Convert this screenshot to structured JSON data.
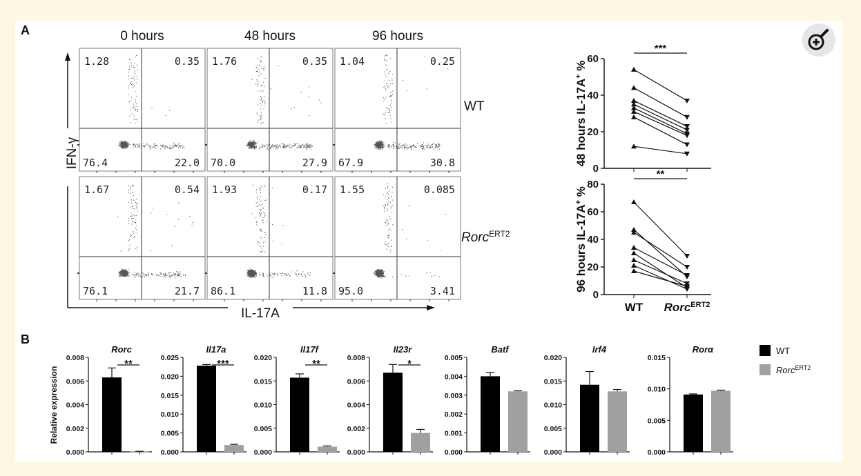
{
  "figure": {
    "panel_a_label": "A",
    "panel_b_label": "B",
    "time_headers": [
      "0 hours",
      "48 hours",
      "96 hours"
    ],
    "flow": {
      "x_axis_label": "IL-17A",
      "y_axis_label": "IFN-γ",
      "row_labels": [
        {
          "main": "WT",
          "sup": ""
        },
        {
          "main": "Rorc",
          "sup": "ERT2"
        }
      ],
      "plots": [
        {
          "row": 0,
          "col": 0,
          "q": [
            "1.28",
            "0.35",
            "76.4",
            "22.0"
          ]
        },
        {
          "row": 0,
          "col": 1,
          "q": [
            "1.76",
            "0.35",
            "70.0",
            "27.9"
          ]
        },
        {
          "row": 0,
          "col": 2,
          "q": [
            "1.04",
            "0.25",
            "67.9",
            "30.8"
          ]
        },
        {
          "row": 1,
          "col": 0,
          "q": [
            "1.67",
            "0.54",
            "76.1",
            "21.7"
          ]
        },
        {
          "row": 1,
          "col": 1,
          "q": [
            "1.93",
            "0.17",
            "86.1",
            "11.8"
          ]
        },
        {
          "row": 1,
          "col": 2,
          "q": [
            "1.55",
            "0.085",
            "95.0",
            "3.41"
          ]
        }
      ]
    },
    "zoom_icon": "zoom-in-icon"
  },
  "chart_data": [
    {
      "type": "line",
      "subtype": "paired",
      "ylabel_main": "48 hours IL-17A",
      "ylabel_sup": "+",
      "ylabel_suffix": " %",
      "categories": [
        "WT",
        "RorcERT2"
      ],
      "ylim": [
        0,
        60
      ],
      "yticks": [
        "0",
        "20",
        "40",
        "60"
      ],
      "significance": "***",
      "pairs": [
        [
          54,
          37
        ],
        [
          44,
          28
        ],
        [
          37,
          23
        ],
        [
          35,
          21
        ],
        [
          33,
          19
        ],
        [
          31,
          18
        ],
        [
          28,
          13
        ],
        [
          12,
          8
        ]
      ]
    },
    {
      "type": "line",
      "subtype": "paired",
      "ylabel_main": "96 hours IL-17A",
      "ylabel_sup": "+",
      "ylabel_suffix": " %",
      "categories": [
        "WT",
        "RorcERT2"
      ],
      "ylim": [
        0,
        80
      ],
      "yticks": [
        "0",
        "20",
        "40",
        "60",
        "80"
      ],
      "significance": "**",
      "pairs": [
        [
          67,
          28
        ],
        [
          47,
          13
        ],
        [
          45,
          20
        ],
        [
          34,
          14
        ],
        [
          30,
          5
        ],
        [
          25,
          8
        ],
        [
          21,
          4
        ],
        [
          17,
          6
        ]
      ]
    },
    {
      "type": "bar",
      "ylabel": "Relative expression",
      "legend": [
        {
          "label": "WT",
          "sup": "",
          "color": "#000000"
        },
        {
          "label": "Rorc",
          "sup": "ERT2",
          "color": "#a0a0a0"
        }
      ],
      "panels": [
        {
          "gene": "Rorc",
          "ymax": 0.008,
          "yticks": [
            "0.000",
            "0.002",
            "0.004",
            "0.006",
            "0.008"
          ],
          "values": [
            0.0063,
            3e-05
          ],
          "errors": [
            0.0008,
            2e-05
          ],
          "significance": "**"
        },
        {
          "gene": "Il17a",
          "ymax": 0.025,
          "yticks": [
            "0.000",
            "0.005",
            "0.010",
            "0.015",
            "0.020",
            "0.025"
          ],
          "values": [
            0.0228,
            0.0018
          ],
          "errors": [
            0.0003,
            0.0002
          ],
          "significance": "***"
        },
        {
          "gene": "Il17f",
          "ymax": 0.02,
          "yticks": [
            "0.000",
            "0.005",
            "0.010",
            "0.015",
            "0.020"
          ],
          "values": [
            0.0157,
            0.0011
          ],
          "errors": [
            0.0008,
            0.00015
          ],
          "significance": "**"
        },
        {
          "gene": "Il23r",
          "ymax": 0.008,
          "yticks": [
            "0.000",
            "0.002",
            "0.004",
            "0.006",
            "0.008"
          ],
          "values": [
            0.0067,
            0.0016
          ],
          "errors": [
            0.0007,
            0.0003
          ],
          "significance": "*"
        },
        {
          "gene": "Batf",
          "ymax": 0.005,
          "yticks": [
            "0.000",
            "0.001",
            "0.002",
            "0.003",
            "0.004",
            "0.005"
          ],
          "values": [
            0.004,
            0.0032
          ],
          "errors": [
            0.0002,
            3e-05
          ],
          "significance": ""
        },
        {
          "gene": "Irf4",
          "ymax": 0.02,
          "yticks": [
            "0.000",
            "0.005",
            "0.010",
            "0.015",
            "0.020"
          ],
          "values": [
            0.0142,
            0.0128
          ],
          "errors": [
            0.0028,
            0.0004
          ],
          "significance": ""
        },
        {
          "gene": "Rorα",
          "ymax": 0.015,
          "yticks": [
            "0.000",
            "0.005",
            "0.010",
            "0.015"
          ],
          "values": [
            0.0091,
            0.0097
          ],
          "errors": [
            0.0001,
            0.0001
          ],
          "significance": ""
        }
      ]
    }
  ]
}
